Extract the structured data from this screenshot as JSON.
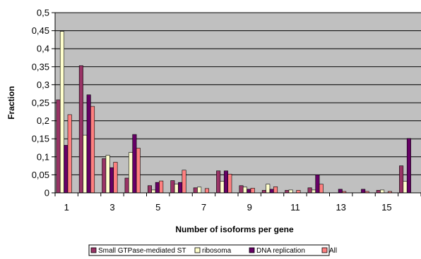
{
  "chart_data": {
    "type": "bar",
    "xlabel": "Number of isoforms per gene",
    "ylabel": "Fraction",
    "ylim": [
      0,
      0.5
    ],
    "y_ticks": [
      "0",
      "0,05",
      "0,1",
      "0,15",
      "0,2",
      "0,25",
      "0,3",
      "0,35",
      "0,4",
      "0,45",
      "0,5"
    ],
    "categories": [
      "1",
      "2",
      "3",
      "4",
      "5",
      "6",
      "7",
      "8",
      "9",
      "10",
      "11",
      "12",
      "13",
      "14",
      "15",
      "16"
    ],
    "x_tick_labels": [
      "1",
      "",
      "3",
      "",
      "5",
      "",
      "7",
      "",
      "9",
      "",
      "11",
      "",
      "13",
      "",
      "15",
      ""
    ],
    "grid": "horizontal",
    "legend_position": "bottom",
    "plot_background": "#c0c0c0",
    "series": [
      {
        "name": "Small GTPase-mediated ST",
        "color": "#993366",
        "values": [
          0.258,
          0.353,
          0.095,
          0.041,
          0.02,
          0.034,
          0.014,
          0.061,
          0.02,
          0.007,
          0.007,
          0.014,
          0.0,
          0.0,
          0.007,
          0.075
        ]
      },
      {
        "name": "ribosoma",
        "color": "#ffffcc",
        "values": [
          0.448,
          0.16,
          0.104,
          0.112,
          0.008,
          0.024,
          0.016,
          0.032,
          0.016,
          0.024,
          0.008,
          0.008,
          0.0,
          0.0,
          0.008,
          0.032
        ]
      },
      {
        "name": "DNA replication",
        "color": "#660066",
        "values": [
          0.132,
          0.272,
          0.07,
          0.162,
          0.029,
          0.029,
          0.0,
          0.061,
          0.01,
          0.01,
          0.0,
          0.05,
          0.01,
          0.01,
          0.0,
          0.151
        ]
      },
      {
        "name": "All",
        "color": "#ff8080",
        "values": [
          0.217,
          0.24,
          0.085,
          0.124,
          0.033,
          0.063,
          0.012,
          0.052,
          0.013,
          0.017,
          0.007,
          0.024,
          0.004,
          0.004,
          0.004,
          0.0
        ]
      }
    ]
  }
}
